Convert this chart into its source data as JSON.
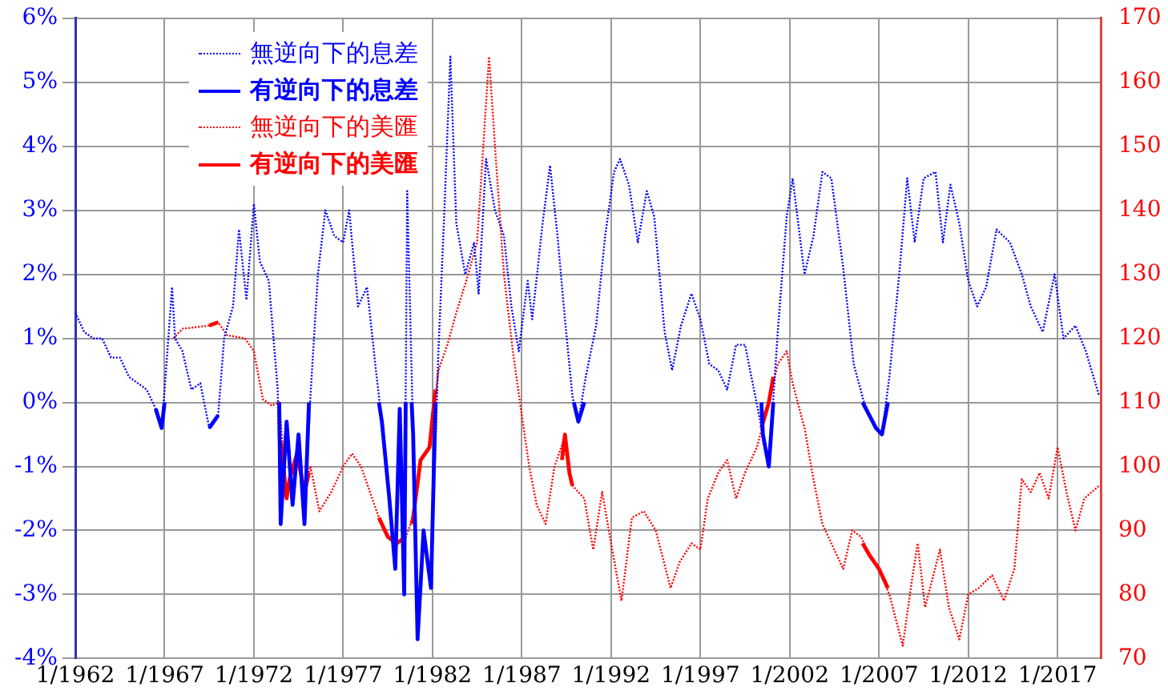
{
  "chart_data": {
    "type": "line",
    "legend": "top left",
    "grid": true,
    "marker": "none",
    "xlim": [
      "1962-01",
      "2019-06"
    ],
    "xticks": [
      {
        "value": "1962-01",
        "label": "1/1962"
      },
      {
        "value": "1967-01",
        "label": "1/1967"
      },
      {
        "value": "1972-01",
        "label": "1/1972"
      },
      {
        "value": "1977-01",
        "label": "1/1977"
      },
      {
        "value": "1982-01",
        "label": "1/1982"
      },
      {
        "value": "1987-01",
        "label": "1/1987"
      },
      {
        "value": "1992-01",
        "label": "1/1992"
      },
      {
        "value": "1997-01",
        "label": "1/1997"
      },
      {
        "value": "2002-01",
        "label": "1/2002"
      },
      {
        "value": "2007-01",
        "label": "1/2007"
      },
      {
        "value": "2012-01",
        "label": "1/2012"
      },
      {
        "value": "2017-01",
        "label": "1/2017"
      }
    ],
    "ylim": [
      -4,
      6
    ],
    "yticks": [
      {
        "value": -4,
        "label": "-4%"
      },
      {
        "value": -3,
        "label": "-3%"
      },
      {
        "value": -2,
        "label": "-2%"
      },
      {
        "value": -1,
        "label": "-1%"
      },
      {
        "value": 0,
        "label": "0%"
      },
      {
        "value": 1,
        "label": "1%"
      },
      {
        "value": 2,
        "label": "2%"
      },
      {
        "value": 3,
        "label": "3%"
      },
      {
        "value": 4,
        "label": "4%"
      },
      {
        "value": 5,
        "label": "5%"
      },
      {
        "value": 6,
        "label": "6%"
      }
    ],
    "y2lim": [
      70,
      170
    ],
    "y2ticks": [
      70,
      80,
      90,
      100,
      110,
      120,
      130,
      140,
      150,
      160,
      170
    ],
    "series": [
      {
        "name": "無逆向下的息差",
        "color": "#0000ff",
        "line_style": "dotted",
        "x": [
          "1962-01",
          "1962-07",
          "1963-01",
          "1963-07",
          "1964-01",
          "1964-07",
          "1965-01",
          "1965-07",
          "1966-01",
          "1966-07",
          "1966-11",
          "1967-01",
          "1967-06",
          "1967-08",
          "1968-01",
          "1968-07",
          "1969-01",
          "1969-07",
          "1970-01",
          "1970-05",
          "1970-11",
          "1971-03",
          "1971-08",
          "1972-01",
          "1972-05",
          "1972-11",
          "1973-05",
          "1973-07",
          "1973-11",
          "1974-03",
          "1974-07",
          "1974-11",
          "1975-03",
          "1975-08",
          "1976-01",
          "1976-07",
          "1977-01",
          "1977-05",
          "1977-11",
          "1978-05",
          "1978-11",
          "1979-03",
          "1979-08",
          "1979-12",
          "1980-03",
          "1980-06",
          "1980-08",
          "1980-12",
          "1981-03",
          "1981-07",
          "1981-12",
          "1982-05",
          "1982-09",
          "1983-01",
          "1983-05",
          "1983-11",
          "1984-05",
          "1984-08",
          "1985-01",
          "1985-07",
          "1986-01",
          "1986-06",
          "1986-11",
          "1987-05",
          "1987-08",
          "1988-03",
          "1988-08",
          "1989-01",
          "1989-06",
          "1989-11",
          "1990-03",
          "1990-08",
          "1991-03",
          "1991-09",
          "1992-03",
          "1992-07",
          "1993-01",
          "1993-07",
          "1994-01",
          "1994-06",
          "1995-01",
          "1995-06",
          "1995-12",
          "1996-07",
          "1997-01",
          "1997-07",
          "1998-01",
          "1998-07",
          "1999-01",
          "1999-07",
          "2000-01",
          "2000-07",
          "2000-11",
          "2001-05",
          "2001-11",
          "2002-03",
          "2002-11",
          "2003-05",
          "2003-11",
          "2004-05",
          "2005-01",
          "2005-08",
          "2006-03",
          "2006-11",
          "2007-03",
          "2007-08",
          "2008-03",
          "2008-08",
          "2009-01",
          "2009-07",
          "2010-03",
          "2010-08",
          "2011-01",
          "2011-07",
          "2012-01",
          "2012-07",
          "2013-01",
          "2013-08",
          "2014-05",
          "2015-01",
          "2015-07",
          "2016-03",
          "2016-11",
          "2017-05",
          "2018-01",
          "2018-08",
          "2019-05"
        ],
        "values": [
          1.4,
          1.1,
          1.0,
          1.0,
          0.7,
          0.7,
          0.4,
          0.3,
          0.2,
          -0.1,
          -0.4,
          0.2,
          1.8,
          1.0,
          0.8,
          0.2,
          0.3,
          -0.4,
          -0.2,
          1.0,
          1.5,
          2.7,
          1.6,
          3.1,
          2.2,
          1.9,
          0.2,
          -1.9,
          -0.3,
          -1.6,
          -0.5,
          -1.9,
          0.1,
          2.0,
          3.0,
          2.6,
          2.5,
          3.0,
          1.5,
          1.8,
          0.5,
          -0.3,
          -1.5,
          -2.6,
          -0.1,
          -3.0,
          3.3,
          -0.5,
          -3.7,
          -2.0,
          -2.9,
          0.8,
          3.0,
          5.4,
          2.8,
          2.0,
          2.5,
          1.7,
          3.8,
          3.0,
          2.6,
          1.5,
          0.8,
          1.9,
          1.3,
          2.8,
          3.7,
          2.6,
          1.3,
          0.1,
          -0.3,
          0.4,
          1.2,
          2.6,
          3.6,
          3.8,
          3.4,
          2.5,
          3.3,
          2.9,
          1.1,
          0.5,
          1.2,
          1.7,
          1.3,
          0.6,
          0.5,
          0.2,
          0.9,
          0.9,
          0.2,
          -0.5,
          -1.0,
          1.1,
          2.9,
          3.5,
          2.0,
          2.6,
          3.6,
          3.5,
          2.1,
          0.6,
          0.0,
          -0.4,
          -0.5,
          0.4,
          2.1,
          3.5,
          2.5,
          3.5,
          3.6,
          2.5,
          3.4,
          2.8,
          1.9,
          1.5,
          1.8,
          2.7,
          2.5,
          2.0,
          1.5,
          1.1,
          2.0,
          1.0,
          1.2,
          0.8,
          0.1
        ]
      },
      {
        "name": "有逆向下的息差",
        "color": "#0000ff",
        "line_style": "solid",
        "x": [
          "1966-07",
          "1966-11",
          "1967-01",
          "1968-01",
          "1969-07",
          "1970-01",
          "1971-01",
          "1973-06",
          "1973-07",
          "1973-11",
          "1974-03",
          "1974-07",
          "1974-11",
          "1975-02",
          "1977-01",
          "1979-01",
          "1979-03",
          "1979-08",
          "1979-12",
          "1980-03",
          "1980-06",
          "1980-07",
          "1980-09",
          "1980-11",
          "1980-12",
          "1981-03",
          "1981-07",
          "1981-12",
          "1982-03",
          "1985-01",
          "1989-12",
          "1990-03",
          "1990-07",
          "1995-01",
          "2000-06",
          "2000-07",
          "2000-11",
          "2001-02",
          "2003-01",
          "2006-02",
          "2006-11",
          "2007-03",
          "2007-07"
        ],
        "values": [
          -0.1,
          -0.4,
          0.0,
          null,
          -0.4,
          -0.2,
          null,
          0.0,
          -1.9,
          -0.3,
          -1.6,
          -0.5,
          -1.9,
          0.0,
          null,
          0.0,
          -0.3,
          -1.5,
          -2.6,
          -0.1,
          -3.0,
          0.0,
          null,
          0.0,
          -0.5,
          -3.7,
          -2.0,
          -2.9,
          0.0,
          null,
          0.0,
          -0.3,
          0.0,
          null,
          0.0,
          -0.5,
          -1.0,
          0.0,
          null,
          0.0,
          -0.4,
          -0.5,
          0.0
        ]
      },
      {
        "name": "無逆向下的美匯",
        "color": "#ff0000",
        "line_style": "dotted",
        "axis": "y2",
        "x": [
          "1967-07",
          "1968-01",
          "1969-07",
          "1970-01",
          "1970-07",
          "1971-07",
          "1972-01",
          "1972-07",
          "1973-01",
          "1973-06",
          "1973-08",
          "1973-11",
          "1974-01",
          "1974-06",
          "1974-11",
          "1975-03",
          "1975-09",
          "1976-05",
          "1977-01",
          "1977-07",
          "1978-01",
          "1978-07",
          "1979-01",
          "1979-07",
          "1980-01",
          "1980-07",
          "1980-12",
          "1981-05",
          "1981-11",
          "1982-05",
          "1982-11",
          "1983-05",
          "1984-01",
          "1984-07",
          "1985-03",
          "1985-07",
          "1986-01",
          "1986-07",
          "1987-01",
          "1987-06",
          "1987-11",
          "1988-05",
          "1988-11",
          "1989-05",
          "1989-11",
          "1990-07",
          "1991-01",
          "1991-07",
          "1992-01",
          "1992-08",
          "1993-03",
          "1993-11",
          "1994-07",
          "1995-05",
          "1995-11",
          "1996-07",
          "1997-01",
          "1997-06",
          "1998-01",
          "1998-07",
          "1999-01",
          "1999-07",
          "2000-03",
          "2000-11",
          "2001-05",
          "2001-11",
          "2002-03",
          "2002-11",
          "2003-05",
          "2003-11",
          "2004-05",
          "2005-01",
          "2005-07",
          "2006-01",
          "2006-07",
          "2007-01",
          "2007-08",
          "2008-05",
          "2008-11",
          "2009-03",
          "2009-08",
          "2010-06",
          "2010-12",
          "2011-07",
          "2012-01",
          "2012-08",
          "2013-05",
          "2014-01",
          "2014-08",
          "2015-01",
          "2015-07",
          "2016-01",
          "2016-07",
          "2017-01",
          "2017-07",
          "2018-01",
          "2018-07",
          "2019-05"
        ],
        "values": [
          120,
          121.5,
          122,
          122.5,
          120.5,
          120,
          118,
          110.5,
          109.5,
          110,
          104,
          95,
          98,
          102,
          96,
          100,
          93,
          96,
          100,
          102,
          100,
          96,
          92,
          89,
          88,
          89,
          92,
          101,
          103,
          115,
          119,
          124,
          130,
          135,
          164,
          150,
          130,
          118,
          108,
          100,
          94,
          91,
          100,
          104,
          97,
          95,
          87,
          96,
          88,
          79,
          92,
          93,
          90,
          81,
          85,
          88,
          87,
          95,
          99,
          101,
          95,
          99,
          103,
          110,
          116,
          118,
          113,
          106,
          98,
          91,
          88,
          84,
          90,
          89,
          86,
          84,
          80,
          72,
          82,
          88,
          78,
          87,
          78,
          73,
          80,
          81,
          83,
          79,
          84,
          98,
          96,
          99,
          95,
          103,
          96,
          90,
          95,
          97
        ]
      },
      {
        "name": "有逆向下的美匯",
        "color": "#ff0000",
        "line_style": "solid",
        "axis": "y2",
        "x": [
          "1969-07",
          "1970-01",
          "1971-01",
          "1973-07",
          "1973-11",
          "1974-01",
          "1974-06",
          "1974-11",
          "1975-02",
          "1977-01",
          "1979-01",
          "1979-07",
          "1980-01",
          "1980-07",
          "1980-09",
          "1980-11",
          "1980-12",
          "1981-05",
          "1981-11",
          "1982-03",
          "1985-01",
          "1989-04",
          "1989-06",
          "1989-09",
          "1989-11",
          "1995-01",
          "2000-06",
          "2000-11",
          "2001-02",
          "2003-01",
          "2006-02",
          "2006-07",
          "2007-01",
          "2007-07"
        ],
        "values": [
          122,
          122.5,
          null,
          104,
          95,
          98,
          102,
          96,
          99,
          null,
          92,
          89,
          88,
          89,
          null,
          91,
          92,
          101,
          103,
          112,
          null,
          101,
          105,
          99,
          97,
          null,
          106,
          110,
          114,
          null,
          88,
          86,
          84,
          81
        ]
      }
    ]
  }
}
